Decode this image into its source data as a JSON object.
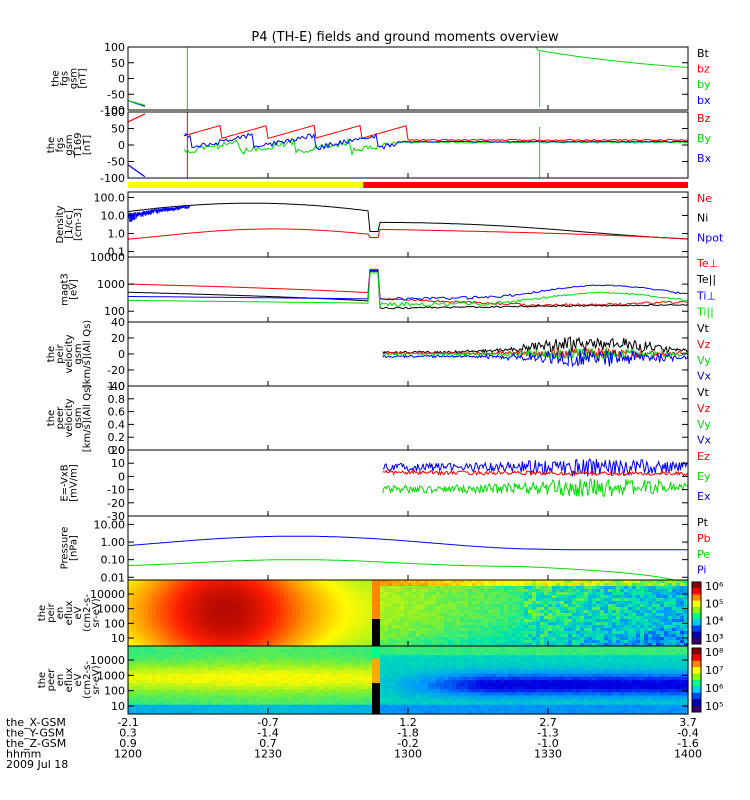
{
  "title": "P4 (TH-E) fields and ground moments overview",
  "chart_data": {
    "type": "line",
    "title": "P4 (TH-E) fields and ground moments overview",
    "time_range": [
      "1200",
      "1400"
    ],
    "colors": {
      "black": "#000000",
      "red": "#ff0000",
      "green": "#00dd00",
      "blue": "#0000ff",
      "yellow": "#ffff00"
    },
    "panels": [
      {
        "id": "fgs",
        "ylabel": [
          "the",
          "fgs",
          "gsm",
          "[nT]"
        ],
        "yticks": [
          "100",
          "50",
          "0",
          "-50",
          "-100"
        ],
        "ylim": [
          -100,
          100
        ],
        "legend": [
          {
            "text": "Bt",
            "color": "black"
          },
          {
            "text": "bz",
            "color": "red"
          },
          {
            "text": "by",
            "color": "green"
          },
          {
            "text": "bx",
            "color": "blue"
          }
        ]
      },
      {
        "id": "fgl",
        "ylabel": [
          "the",
          "fgs",
          "gsm",
          "T169",
          "[nT]"
        ],
        "yticks": [
          "100",
          "50",
          "0",
          "-50",
          "-100"
        ],
        "ylim": [
          -100,
          100
        ],
        "legend": [
          {
            "text": "Bz",
            "color": "red"
          },
          {
            "text": "By",
            "color": "green"
          },
          {
            "text": "Bx",
            "color": "blue"
          }
        ]
      },
      {
        "id": "density",
        "ylabel": [
          "Density",
          "[1/cc]",
          "[cm-3]"
        ],
        "yticks": [
          "100.0",
          "10.0",
          "1.0",
          "0.1"
        ],
        "ylim": [
          0.05,
          200
        ],
        "log": true,
        "legend": [
          {
            "text": "Ne",
            "color": "red"
          },
          {
            "text": "Ni",
            "color": "black"
          },
          {
            "text": "Npot",
            "color": "blue"
          }
        ]
      },
      {
        "id": "temp",
        "ylabel": [
          "magt3",
          "[eV]"
        ],
        "yticks": [
          "10000",
          "1000",
          "100"
        ],
        "ylim": [
          40,
          10000
        ],
        "log": true,
        "legend": [
          {
            "text": "Te⊥",
            "color": "red"
          },
          {
            "text": "Te||",
            "color": "black"
          },
          {
            "text": "Ti⊥",
            "color": "blue"
          },
          {
            "text": "Ti||",
            "color": "green"
          }
        ]
      },
      {
        "id": "peir_vel",
        "ylabel": [
          "the",
          "peir",
          "velocity",
          "gsm",
          "[km/s](All Qs)"
        ],
        "yticks": [
          "40",
          "20",
          "0",
          "-20",
          "-40"
        ],
        "ylim": [
          -40,
          40
        ],
        "legend": [
          {
            "text": "Vt",
            "color": "black"
          },
          {
            "text": "Vz",
            "color": "red"
          },
          {
            "text": "Vy",
            "color": "green"
          },
          {
            "text": "Vx",
            "color": "blue"
          }
        ]
      },
      {
        "id": "peer_vel",
        "ylabel": [
          "the",
          "peer",
          "velocity",
          "gsm",
          "[km/s](All Qs)"
        ],
        "yticks": [
          "1.0",
          "0.8",
          "0.6",
          "0.4",
          "0.2",
          "0.0"
        ],
        "ylim": [
          0,
          1
        ],
        "legend": [
          {
            "text": "Vt",
            "color": "black"
          },
          {
            "text": "Vz",
            "color": "red"
          },
          {
            "text": "Vy",
            "color": "green"
          },
          {
            "text": "Vx",
            "color": "blue"
          }
        ]
      },
      {
        "id": "efield",
        "ylabel": [
          "E=-VxB",
          "[mV/m]"
        ],
        "yticks": [
          "20",
          "10",
          "0",
          "-10",
          "-20",
          "-30"
        ],
        "ylim": [
          -30,
          20
        ],
        "legend": [
          {
            "text": "Ez",
            "color": "red"
          },
          {
            "text": "Ey",
            "color": "green"
          },
          {
            "text": "Ex",
            "color": "blue"
          }
        ]
      },
      {
        "id": "pressure",
        "ylabel": [
          "Pressure",
          "[nPa]"
        ],
        "yticks": [
          "10.00",
          "1.00",
          "0.10",
          "0.01"
        ],
        "ylim": [
          0.007,
          30
        ],
        "log": true,
        "legend": [
          {
            "text": "Pt",
            "color": "black"
          },
          {
            "text": "Pb",
            "color": "red"
          },
          {
            "text": "Pe",
            "color": "green"
          },
          {
            "text": "Pi",
            "color": "blue"
          }
        ]
      },
      {
        "id": "peir_spec",
        "ylabel": [
          "the",
          "peir",
          "en",
          "eflux",
          "eV",
          "(cm2-s-",
          "sr-eV)"
        ],
        "yticks": [
          "10000",
          "1000",
          "100",
          "10"
        ],
        "colorbar": [
          "10⁶",
          "10⁵",
          "10⁴",
          "10³"
        ],
        "spectrogram": true
      },
      {
        "id": "peer_spec",
        "ylabel": [
          "the",
          "peer",
          "en",
          "eflux",
          "eV",
          "(cm2-s-",
          "sr-eV)"
        ],
        "yticks": [
          "10000",
          "1000",
          "100",
          "10"
        ],
        "colorbar": [
          "10⁸",
          "10⁷",
          "10⁶",
          "10⁵"
        ],
        "spectrogram": true
      }
    ],
    "x_axis": {
      "tick_rows": [
        {
          "label": "the_X-GSM",
          "values": [
            "-2.1",
            "-0.7",
            "1.2",
            "2.7",
            "3.7"
          ]
        },
        {
          "label": "the_Y-GSM",
          "values": [
            "0.3",
            "-1.4",
            "-1.8",
            "-1.3",
            "-0.4"
          ]
        },
        {
          "label": "the_Z-GSM",
          "values": [
            "0.9",
            "0.7",
            "-0.2",
            "-1.0",
            "-1.6"
          ]
        },
        {
          "label": "hhmm",
          "values": [
            "1200",
            "1230",
            "1300",
            "1330",
            "1400"
          ]
        }
      ],
      "date": "2009 Jul 18"
    }
  }
}
